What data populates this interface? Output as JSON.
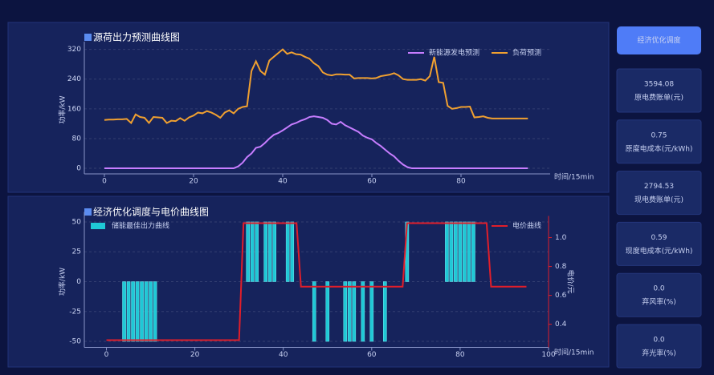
{
  "chart_data": [
    {
      "type": "line",
      "title": "源荷出力预测曲线图",
      "ylabel": "功率/kW",
      "xlabel": "时间/15min",
      "x": [
        0,
        1,
        2,
        3,
        4,
        5,
        6,
        7,
        8,
        9,
        10,
        11,
        12,
        13,
        14,
        15,
        16,
        17,
        18,
        19,
        20,
        21,
        22,
        23,
        24,
        25,
        26,
        27,
        28,
        29,
        30,
        31,
        32,
        33,
        34,
        35,
        36,
        37,
        38,
        39,
        40,
        41,
        42,
        43,
        44,
        45,
        46,
        47,
        48,
        49,
        50,
        51,
        52,
        53,
        54,
        55,
        56,
        57,
        58,
        59,
        60,
        61,
        62,
        63,
        64,
        65,
        66,
        67,
        68,
        69,
        70,
        71,
        72,
        73,
        74,
        75,
        76,
        77,
        78,
        79,
        80,
        81,
        82,
        83,
        84,
        85,
        86,
        87,
        88,
        89,
        90,
        91,
        92,
        93,
        94,
        95
      ],
      "series": [
        {
          "name": "新能源发电预测",
          "color": "#c77dff",
          "values": [
            0,
            0,
            0,
            0,
            0,
            0,
            0,
            0,
            0,
            0,
            0,
            0,
            0,
            0,
            0,
            0,
            0,
            0,
            0,
            0,
            0,
            0,
            0,
            0,
            0,
            0,
            0,
            0,
            0,
            0,
            5,
            15,
            30,
            40,
            55,
            58,
            68,
            80,
            90,
            95,
            102,
            110,
            118,
            122,
            128,
            132,
            138,
            140,
            138,
            136,
            130,
            120,
            118,
            125,
            116,
            110,
            104,
            98,
            88,
            82,
            78,
            68,
            60,
            50,
            40,
            32,
            20,
            10,
            3,
            0,
            0,
            0,
            0,
            0,
            0,
            0,
            0,
            0,
            0,
            0,
            0,
            0,
            0,
            0,
            0,
            0,
            0,
            0,
            0,
            0,
            0,
            0,
            0,
            0,
            0,
            0
          ]
        },
        {
          "name": "负荷预测",
          "color": "#f0a030",
          "values": [
            130,
            131,
            131,
            132,
            132,
            133,
            122,
            145,
            138,
            136,
            122,
            138,
            137,
            136,
            122,
            128,
            127,
            135,
            128,
            137,
            142,
            150,
            148,
            154,
            150,
            144,
            136,
            150,
            156,
            148,
            160,
            165,
            167,
            262,
            288,
            262,
            252,
            290,
            300,
            310,
            320,
            308,
            312,
            307,
            306,
            300,
            295,
            283,
            275,
            258,
            252,
            250,
            253,
            253,
            252,
            252,
            242,
            243,
            243,
            243,
            242,
            243,
            248,
            250,
            252,
            256,
            250,
            240,
            238,
            238,
            238,
            240,
            236,
            248,
            300,
            232,
            230,
            168,
            160,
            162,
            165,
            165,
            166,
            137,
            138,
            140,
            136,
            134,
            134,
            134,
            134,
            134,
            134,
            134,
            134,
            134
          ]
        }
      ],
      "xlim": [
        -4.5,
        100
      ],
      "xticks": [
        0,
        20,
        40,
        60,
        80
      ],
      "ylim": [
        -15,
        330
      ],
      "yticks": [
        0,
        80,
        160,
        240,
        320
      ],
      "grid": true
    },
    {
      "type": "combo",
      "title": "经济优化调度与电价曲线图",
      "ylabel": "功率/kW",
      "y2label": "电价/元",
      "xlabel": "时间/15min",
      "x": [
        0,
        1,
        2,
        3,
        4,
        5,
        6,
        7,
        8,
        9,
        10,
        11,
        12,
        13,
        14,
        15,
        16,
        17,
        18,
        19,
        20,
        21,
        22,
        23,
        24,
        25,
        26,
        27,
        28,
        29,
        30,
        31,
        32,
        33,
        34,
        35,
        36,
        37,
        38,
        39,
        40,
        41,
        42,
        43,
        44,
        45,
        46,
        47,
        48,
        49,
        50,
        51,
        52,
        53,
        54,
        55,
        56,
        57,
        58,
        59,
        60,
        61,
        62,
        63,
        64,
        65,
        66,
        67,
        68,
        69,
        70,
        71,
        72,
        73,
        74,
        75,
        76,
        77,
        78,
        79,
        80,
        81,
        82,
        83,
        84,
        85,
        86,
        87,
        88,
        89,
        90,
        91,
        92,
        93,
        94,
        95
      ],
      "series": [
        {
          "name": "储能最佳出力曲线",
          "type": "bar",
          "color": "#1fc8d6",
          "values": [
            0,
            0,
            0,
            0,
            -50,
            -50,
            -50,
            -50,
            -50,
            -50,
            -50,
            -50,
            0,
            0,
            0,
            0,
            0,
            0,
            0,
            0,
            0,
            0,
            0,
            0,
            0,
            0,
            0,
            0,
            0,
            0,
            0,
            0,
            50,
            50,
            50,
            0,
            50,
            50,
            50,
            0,
            0,
            50,
            50,
            0,
            0,
            0,
            0,
            -50,
            0,
            0,
            -50,
            0,
            0,
            0,
            -50,
            -50,
            -50,
            0,
            -50,
            0,
            -50,
            0,
            0,
            -50,
            0,
            0,
            0,
            0,
            50,
            0,
            0,
            0,
            0,
            0,
            0,
            0,
            0,
            50,
            50,
            50,
            50,
            50,
            50,
            50,
            0,
            0,
            0,
            0,
            0,
            0,
            0,
            0,
            0,
            0,
            0,
            0
          ]
        },
        {
          "name": "电价曲线",
          "type": "line",
          "axis": "y2",
          "color": "#e01e2a",
          "values": [
            0.29,
            0.29,
            0.29,
            0.29,
            0.29,
            0.29,
            0.29,
            0.29,
            0.29,
            0.29,
            0.29,
            0.29,
            0.29,
            0.29,
            0.29,
            0.29,
            0.29,
            0.29,
            0.29,
            0.29,
            0.29,
            0.29,
            0.29,
            0.29,
            0.29,
            0.29,
            0.29,
            0.29,
            0.29,
            0.29,
            0.29,
            1.1,
            1.1,
            1.1,
            1.1,
            1.1,
            1.1,
            1.1,
            1.1,
            1.1,
            1.1,
            1.1,
            1.1,
            1.1,
            0.66,
            0.66,
            0.66,
            0.66,
            0.66,
            0.66,
            0.66,
            0.66,
            0.66,
            0.66,
            0.66,
            0.66,
            0.66,
            0.66,
            0.66,
            0.66,
            0.66,
            0.66,
            0.66,
            0.66,
            0.66,
            0.66,
            0.66,
            0.66,
            1.1,
            1.1,
            1.1,
            1.1,
            1.1,
            1.1,
            1.1,
            1.1,
            1.1,
            1.1,
            1.1,
            1.1,
            1.1,
            1.1,
            1.1,
            1.1,
            1.1,
            1.1,
            1.1,
            0.66,
            0.66,
            0.66,
            0.66,
            0.66,
            0.66,
            0.66,
            0.66,
            0.66
          ]
        }
      ],
      "xlim": [
        -5,
        100
      ],
      "xticks": [
        0,
        20,
        40,
        60,
        80,
        100
      ],
      "ylim": [
        -55,
        55
      ],
      "yticks": [
        -50,
        -25,
        0,
        25,
        50
      ],
      "y2lim": [
        0.24,
        1.15
      ],
      "y2ticks": [
        0.4,
        0.6,
        0.8,
        {
          "value": 1,
          "label": "1.0"
        }
      ],
      "grid": true
    }
  ],
  "sidebar": {
    "button": "经济优化调度",
    "cards": [
      {
        "value": "3594.08",
        "label": "原电费账单(元)",
        "color": "#f5c16c"
      },
      {
        "value": "0.75",
        "label": "原度电成本(元/kWh)",
        "color": "#6fd0ff"
      },
      {
        "value": "2794.53",
        "label": "现电费账单(元)",
        "color": "#5fd9ff"
      },
      {
        "value": "0.59",
        "label": "现度电成本(元/kWh)",
        "color": "#ff9a4d"
      },
      {
        "value": "0.0",
        "label": "弃风率(%)",
        "color": "#a78bfa"
      },
      {
        "value": "0.0",
        "label": "弃光率(%)",
        "color": "#5ef0a0"
      }
    ]
  }
}
